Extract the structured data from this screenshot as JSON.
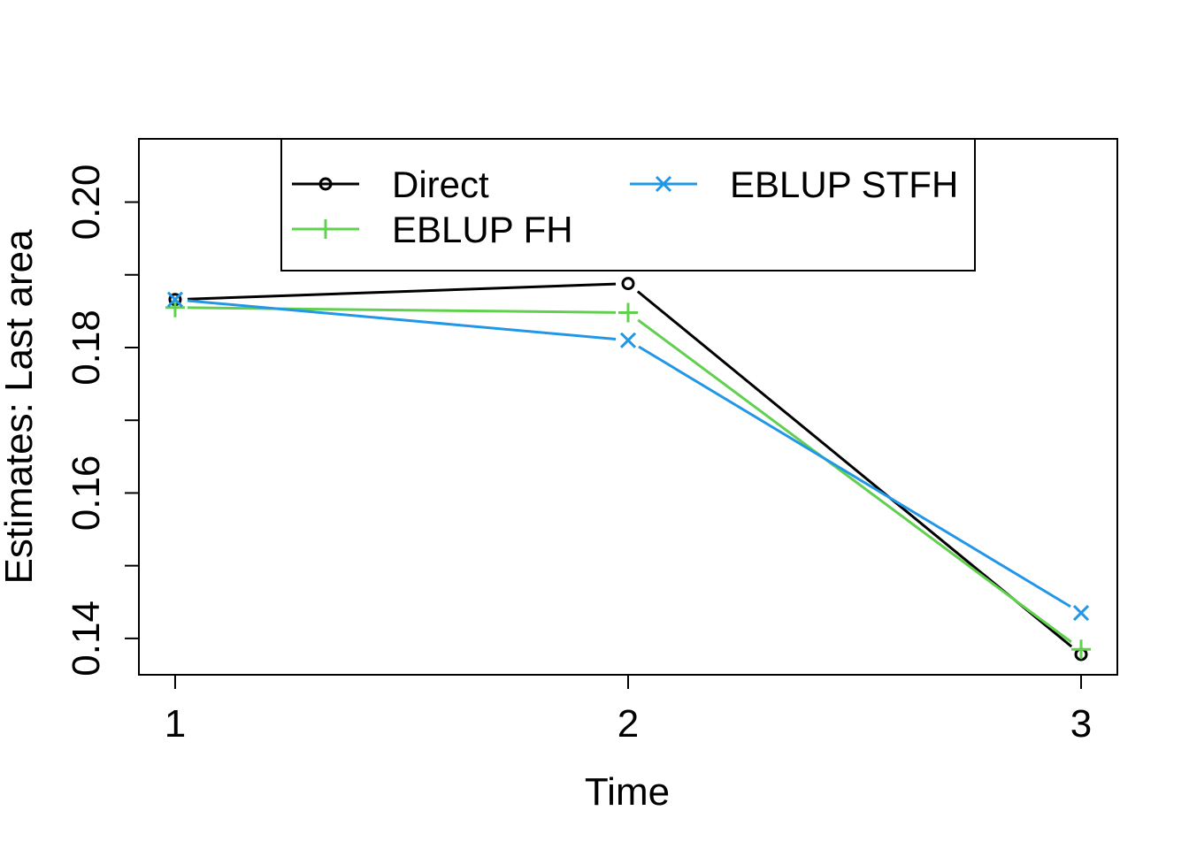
{
  "chart_data": {
    "type": "line",
    "title": "",
    "xlabel": "Time",
    "ylabel": "Estimates: Last area",
    "x": [
      1,
      2,
      3
    ],
    "x_ticks": [
      "1",
      "2",
      "3"
    ],
    "xlim": [
      0.92,
      3.08
    ],
    "ylim": [
      0.135,
      0.2087
    ],
    "y_ticks": [
      0.14,
      0.15,
      0.16,
      0.17,
      0.18,
      0.19,
      0.2
    ],
    "y_tick_labels": [
      "0.14",
      "",
      "0.16",
      "",
      "0.18",
      "",
      "0.20"
    ],
    "grid": false,
    "legend_position": "top-center",
    "series": [
      {
        "name": "Direct",
        "values": [
          0.1866,
          0.1888,
          0.1378
        ],
        "color": "#000000",
        "marker": "circle"
      },
      {
        "name": "EBLUP FH",
        "values": [
          0.1855,
          0.1848,
          0.1385
        ],
        "color": "#61D04F",
        "marker": "plus"
      },
      {
        "name": "EBLUP STFH",
        "values": [
          0.1866,
          0.181,
          0.1435
        ],
        "color": "#2297E6",
        "marker": "cross"
      }
    ]
  }
}
